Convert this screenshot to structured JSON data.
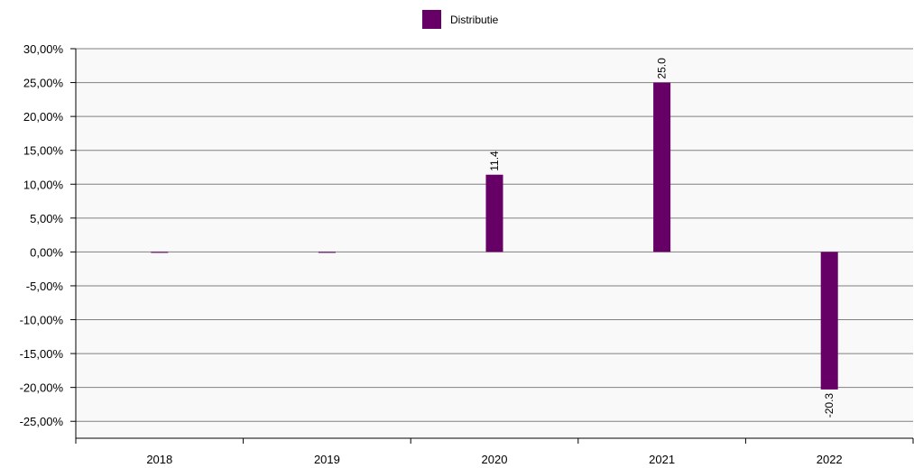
{
  "chart_data": {
    "type": "bar",
    "categories": [
      "2018",
      "2019",
      "2020",
      "2021",
      "2022"
    ],
    "series": [
      {
        "name": "Distributie",
        "values": [
          0.0,
          0.0,
          11.4,
          25.0,
          -20.3
        ],
        "data_labels": [
          "",
          "",
          "11.4",
          "25.0",
          "-20.3"
        ]
      }
    ],
    "ylim": [
      -27.5,
      30
    ],
    "y_ticks": [
      30,
      25,
      20,
      15,
      10,
      5,
      0,
      -5,
      -10,
      -15,
      -20,
      -25
    ],
    "y_tick_labels": [
      "30,00%",
      "25,00%",
      "20,00%",
      "15,00%",
      "10,00%",
      "5,00%",
      "0,00%",
      "-5,00%",
      "-10,00%",
      "-15,00%",
      "-20,00%",
      "-25,00%"
    ],
    "grid": true,
    "legend_position": "top-center",
    "colors": {
      "bar": "#660066",
      "grid": "#808080",
      "plot_background": "#f9f9f9",
      "axis": "#000000"
    },
    "title": "",
    "xlabel": "",
    "ylabel": ""
  }
}
